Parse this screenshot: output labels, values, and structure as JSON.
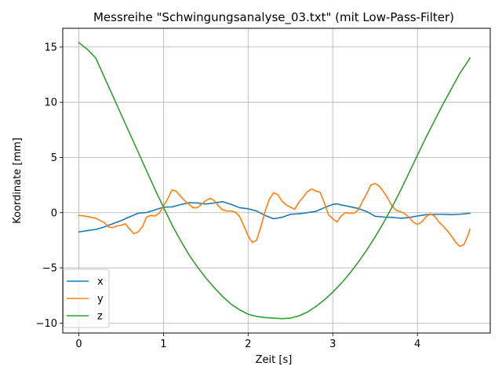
{
  "chart_data": {
    "type": "line",
    "title": "Messreihe \"Schwingungsanalyse_03.txt\" (mit Low-Pass-Filter)",
    "xlabel": "Zeit [s]",
    "ylabel": "Koordinate [mm]",
    "xlim": [
      -0.19,
      4.86
    ],
    "ylim": [
      -10.9,
      16.7
    ],
    "xticks": [
      0,
      1,
      2,
      3,
      4
    ],
    "yticks": [
      -10,
      -5,
      0,
      5,
      10,
      15
    ],
    "ytick_labels": [
      "−10",
      "−5",
      "0",
      "5",
      "10",
      "15"
    ],
    "grid": true,
    "legend_position": "lower-left",
    "series": [
      {
        "name": "x",
        "color": "#1f77b4",
        "x": [
          0.0,
          0.1,
          0.2,
          0.3,
          0.4,
          0.5,
          0.6,
          0.7,
          0.8,
          0.9,
          1.0,
          1.1,
          1.2,
          1.3,
          1.4,
          1.5,
          1.6,
          1.7,
          1.8,
          1.9,
          2.0,
          2.1,
          2.2,
          2.3,
          2.4,
          2.5,
          2.6,
          2.7,
          2.8,
          2.9,
          3.0,
          3.05,
          3.1,
          3.2,
          3.3,
          3.4,
          3.5,
          3.6,
          3.7,
          3.8,
          3.9,
          4.0,
          4.1,
          4.2,
          4.3,
          4.4,
          4.5,
          4.62
        ],
        "y": [
          -1.75,
          -1.62,
          -1.52,
          -1.3,
          -1.0,
          -0.72,
          -0.38,
          -0.05,
          0.02,
          0.25,
          0.5,
          0.52,
          0.72,
          0.9,
          0.88,
          0.78,
          0.88,
          1.0,
          0.75,
          0.45,
          0.35,
          0.15,
          -0.25,
          -0.55,
          -0.42,
          -0.15,
          -0.1,
          0.0,
          0.12,
          0.45,
          0.75,
          0.8,
          0.7,
          0.55,
          0.38,
          0.1,
          -0.32,
          -0.4,
          -0.42,
          -0.5,
          -0.45,
          -0.3,
          -0.18,
          -0.15,
          -0.15,
          -0.18,
          -0.15,
          -0.05
        ]
      },
      {
        "name": "y",
        "color": "#ff7f0e",
        "x": [
          0.0,
          0.05,
          0.1,
          0.2,
          0.3,
          0.35,
          0.4,
          0.45,
          0.5,
          0.55,
          0.6,
          0.65,
          0.7,
          0.75,
          0.8,
          0.85,
          0.9,
          0.95,
          1.0,
          1.05,
          1.1,
          1.15,
          1.2,
          1.25,
          1.3,
          1.35,
          1.4,
          1.45,
          1.5,
          1.55,
          1.6,
          1.65,
          1.7,
          1.75,
          1.8,
          1.85,
          1.9,
          1.95,
          2.0,
          2.05,
          2.1,
          2.15,
          2.2,
          2.25,
          2.3,
          2.35,
          2.4,
          2.45,
          2.5,
          2.55,
          2.6,
          2.65,
          2.7,
          2.75,
          2.8,
          2.85,
          2.9,
          2.95,
          3.0,
          3.05,
          3.1,
          3.15,
          3.2,
          3.25,
          3.3,
          3.35,
          3.4,
          3.45,
          3.5,
          3.55,
          3.6,
          3.65,
          3.7,
          3.75,
          3.8,
          3.85,
          3.9,
          3.95,
          4.0,
          4.05,
          4.1,
          4.15,
          4.2,
          4.25,
          4.3,
          4.35,
          4.4,
          4.45,
          4.5,
          4.55,
          4.6,
          4.62
        ],
        "y": [
          -0.25,
          -0.28,
          -0.35,
          -0.5,
          -0.9,
          -1.3,
          -1.35,
          -1.2,
          -1.15,
          -1.0,
          -1.5,
          -1.9,
          -1.75,
          -1.3,
          -0.4,
          -0.25,
          -0.3,
          -0.05,
          0.6,
          1.25,
          2.05,
          1.95,
          1.5,
          1.1,
          0.75,
          0.45,
          0.45,
          0.75,
          1.1,
          1.3,
          1.1,
          0.6,
          0.25,
          0.15,
          0.15,
          0.05,
          -0.35,
          -1.2,
          -2.1,
          -2.7,
          -2.5,
          -1.3,
          0.1,
          1.2,
          1.8,
          1.65,
          1.05,
          0.7,
          0.5,
          0.3,
          0.95,
          1.4,
          1.9,
          2.15,
          1.95,
          1.85,
          0.9,
          -0.2,
          -0.55,
          -0.85,
          -0.3,
          0.0,
          -0.05,
          -0.05,
          0.25,
          1.0,
          1.7,
          2.5,
          2.65,
          2.4,
          1.9,
          1.3,
          0.6,
          0.2,
          0.1,
          -0.1,
          -0.4,
          -0.85,
          -1.05,
          -0.85,
          -0.4,
          -0.1,
          -0.3,
          -0.8,
          -1.2,
          -1.6,
          -2.1,
          -2.65,
          -3.05,
          -2.9,
          -2.0,
          -1.5
        ]
      },
      {
        "name": "z",
        "color": "#2ca02c",
        "x": [
          0.0,
          0.1,
          0.2,
          0.3,
          0.4,
          0.5,
          0.6,
          0.7,
          0.8,
          0.9,
          1.0,
          1.1,
          1.2,
          1.3,
          1.4,
          1.5,
          1.6,
          1.7,
          1.8,
          1.9,
          2.0,
          2.1,
          2.2,
          2.3,
          2.4,
          2.5,
          2.6,
          2.7,
          2.8,
          2.9,
          3.0,
          3.1,
          3.2,
          3.3,
          3.4,
          3.5,
          3.6,
          3.7,
          3.8,
          3.9,
          4.0,
          4.1,
          4.2,
          4.3,
          4.4,
          4.5,
          4.62
        ],
        "y": [
          15.4,
          14.8,
          14.0,
          12.3,
          10.6,
          8.9,
          7.2,
          5.5,
          3.8,
          2.1,
          0.5,
          -1.1,
          -2.5,
          -3.8,
          -4.9,
          -5.9,
          -6.8,
          -7.6,
          -8.3,
          -8.8,
          -9.2,
          -9.4,
          -9.5,
          -9.55,
          -9.6,
          -9.55,
          -9.35,
          -9.0,
          -8.5,
          -7.9,
          -7.2,
          -6.4,
          -5.5,
          -4.5,
          -3.4,
          -2.2,
          -0.9,
          0.5,
          2.0,
          3.6,
          5.2,
          6.8,
          8.3,
          9.8,
          11.2,
          12.6,
          14.0
        ]
      }
    ]
  }
}
